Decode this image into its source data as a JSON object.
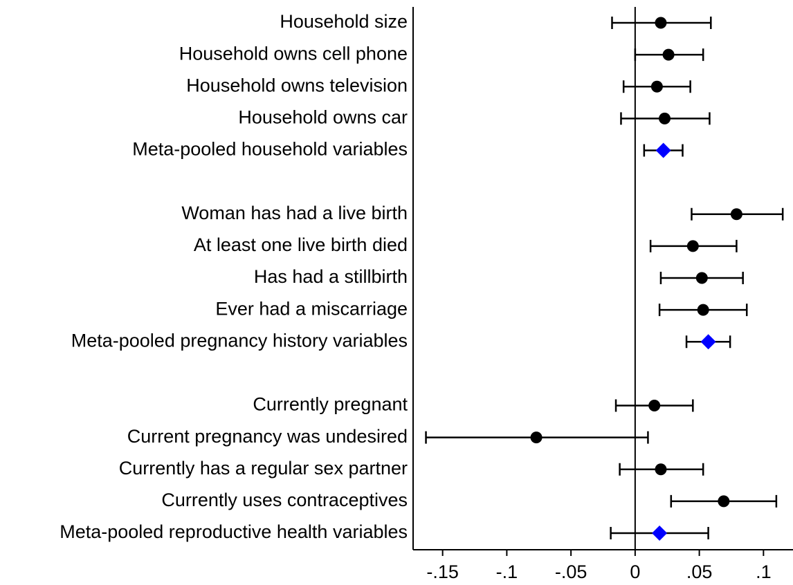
{
  "chart_data": {
    "type": "coefplot",
    "categories": [
      "Household size",
      "Household owns cell phone",
      "Household owns television",
      "Household owns car",
      "Meta-pooled household variables",
      null,
      "Woman has had a live birth",
      "At least one live birth died",
      "Has had a stillbirth",
      "Ever had a miscarriage",
      "Meta-pooled pregnancy history variables",
      null,
      "Currently pregnant",
      "Current pregnancy was undesired",
      "Currently has a regular sex partner",
      "Currently uses contraceptives",
      "Meta-pooled reproductive health variables"
    ],
    "values": [
      0.02,
      0.026,
      0.017,
      0.023,
      0.022,
      null,
      0.079,
      0.045,
      0.052,
      0.053,
      0.057,
      null,
      0.015,
      -0.077,
      0.02,
      0.069,
      0.019
    ],
    "lower": [
      -0.018,
      0.0,
      -0.009,
      -0.011,
      0.007,
      null,
      0.044,
      0.012,
      0.02,
      0.019,
      0.04,
      null,
      -0.015,
      -0.163,
      -0.012,
      0.028,
      -0.019
    ],
    "upper": [
      0.059,
      0.053,
      0.043,
      0.058,
      0.037,
      null,
      0.115,
      0.079,
      0.084,
      0.087,
      0.074,
      null,
      0.045,
      0.01,
      0.053,
      0.11,
      0.057
    ],
    "shapes": [
      "circle",
      "circle",
      "circle",
      "circle",
      "diamond",
      null,
      "circle",
      "circle",
      "circle",
      "circle",
      "diamond",
      null,
      "circle",
      "circle",
      "circle",
      "circle",
      "diamond"
    ],
    "colors": [
      "#000000",
      "#000000",
      "#000000",
      "#000000",
      "#0000ff",
      null,
      "#000000",
      "#000000",
      "#000000",
      "#000000",
      "#0000ff",
      null,
      "#000000",
      "#000000",
      "#000000",
      "#000000",
      "#0000ff"
    ],
    "xlim": [
      -0.173,
      0.123
    ],
    "xticks": [
      {
        "value": -0.15,
        "label": "-.15"
      },
      {
        "value": -0.1,
        "label": "-.1"
      },
      {
        "value": -0.05,
        "label": "-.05"
      },
      0,
      {
        "value": 0.05,
        "label": ".05"
      },
      {
        "value": 0.1,
        "label": ".1"
      }
    ]
  }
}
